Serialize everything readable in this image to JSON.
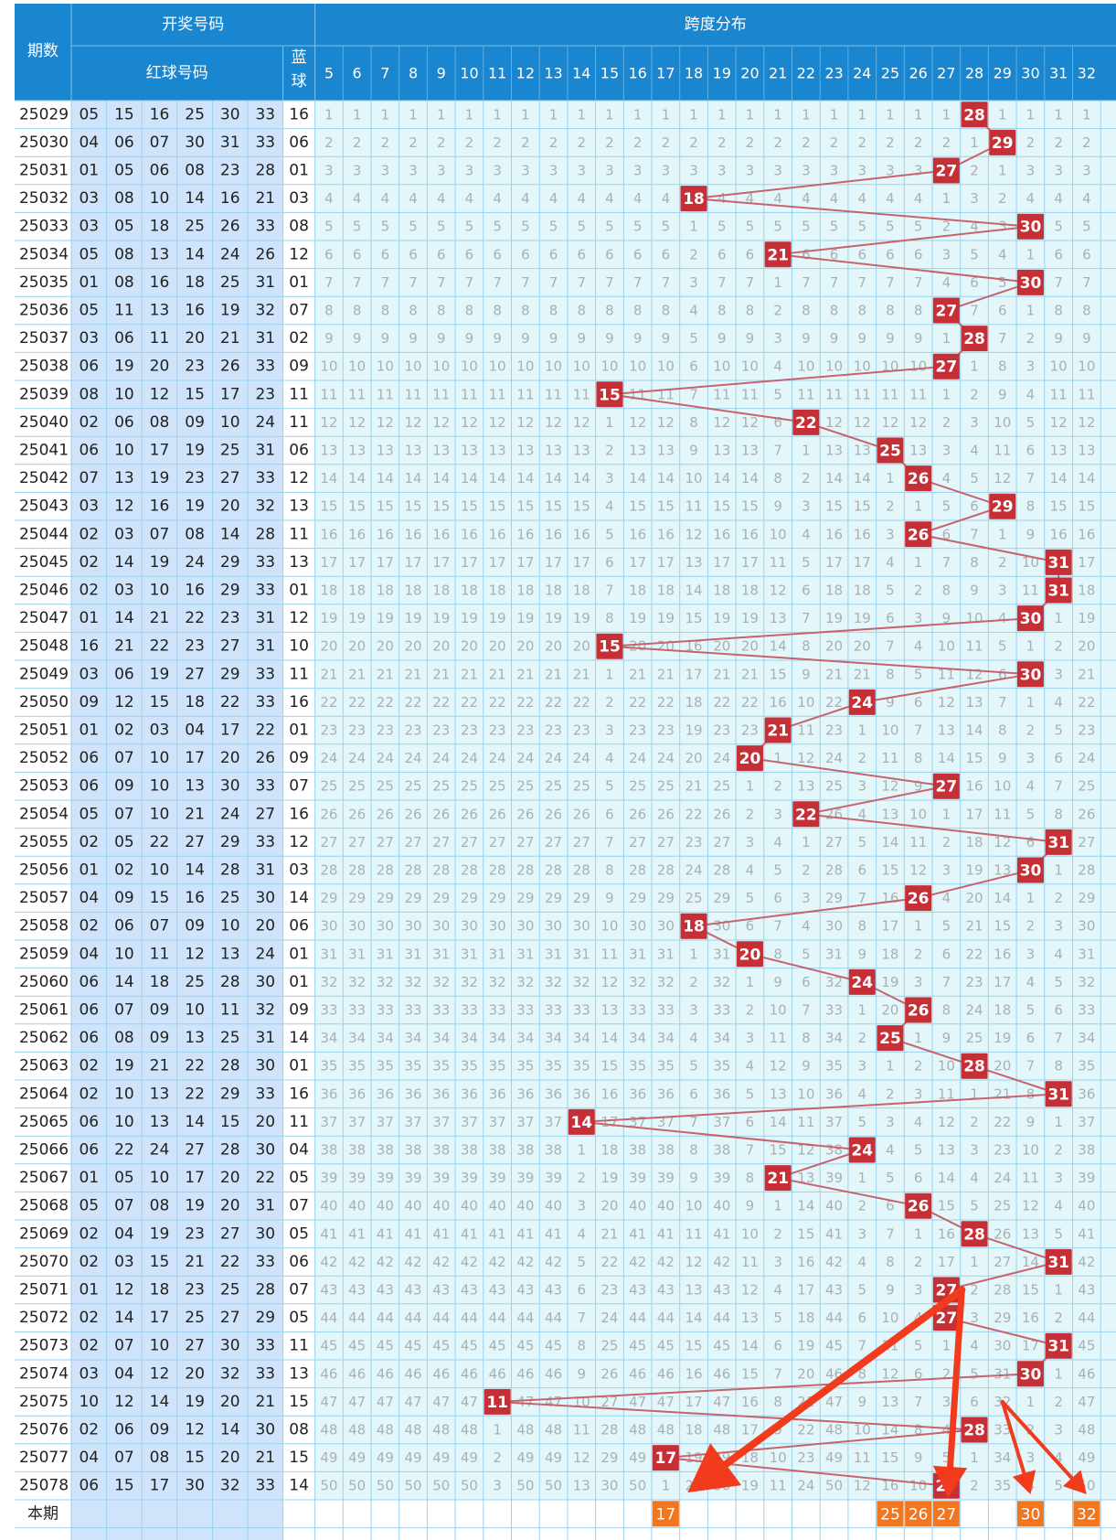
{
  "header": {
    "period_label": "期数",
    "draw_numbers_label": "开奖号码",
    "red_balls_label": "红球号码",
    "blue_ball_label": "蓝球",
    "span_label": "跨度分布",
    "current_period_label": "本期"
  },
  "span_columns": [
    5,
    6,
    7,
    8,
    9,
    10,
    11,
    12,
    13,
    14,
    15,
    16,
    17,
    18,
    19,
    20,
    21,
    22,
    23,
    24,
    25,
    26,
    27,
    28,
    29,
    30,
    31,
    32
  ],
  "rows": [
    {
      "period": "25029",
      "red": [
        "05",
        "15",
        "16",
        "25",
        "30",
        "33"
      ],
      "blue": "16",
      "span": 28
    },
    {
      "period": "25030",
      "red": [
        "04",
        "06",
        "07",
        "30",
        "31",
        "33"
      ],
      "blue": "06",
      "span": 29
    },
    {
      "period": "25031",
      "red": [
        "01",
        "05",
        "06",
        "08",
        "23",
        "28"
      ],
      "blue": "01",
      "span": 27
    },
    {
      "period": "25032",
      "red": [
        "03",
        "08",
        "10",
        "14",
        "16",
        "21"
      ],
      "blue": "03",
      "span": 18
    },
    {
      "period": "25033",
      "red": [
        "03",
        "05",
        "18",
        "25",
        "26",
        "33"
      ],
      "blue": "08",
      "span": 30
    },
    {
      "period": "25034",
      "red": [
        "05",
        "08",
        "13",
        "14",
        "24",
        "26"
      ],
      "blue": "12",
      "span": 21
    },
    {
      "period": "25035",
      "red": [
        "01",
        "08",
        "16",
        "18",
        "25",
        "31"
      ],
      "blue": "01",
      "span": 30
    },
    {
      "period": "25036",
      "red": [
        "05",
        "11",
        "13",
        "16",
        "19",
        "32"
      ],
      "blue": "07",
      "span": 27
    },
    {
      "period": "25037",
      "red": [
        "03",
        "06",
        "11",
        "20",
        "21",
        "31"
      ],
      "blue": "02",
      "span": 28
    },
    {
      "period": "25038",
      "red": [
        "06",
        "19",
        "20",
        "23",
        "26",
        "33"
      ],
      "blue": "09",
      "span": 27
    },
    {
      "period": "25039",
      "red": [
        "08",
        "10",
        "12",
        "15",
        "17",
        "23"
      ],
      "blue": "11",
      "span": 15
    },
    {
      "period": "25040",
      "red": [
        "02",
        "06",
        "08",
        "09",
        "10",
        "24"
      ],
      "blue": "11",
      "span": 22
    },
    {
      "period": "25041",
      "red": [
        "06",
        "10",
        "17",
        "19",
        "25",
        "31"
      ],
      "blue": "06",
      "span": 25
    },
    {
      "period": "25042",
      "red": [
        "07",
        "13",
        "19",
        "23",
        "27",
        "33"
      ],
      "blue": "12",
      "span": 26
    },
    {
      "period": "25043",
      "red": [
        "03",
        "12",
        "16",
        "19",
        "20",
        "32"
      ],
      "blue": "13",
      "span": 29
    },
    {
      "period": "25044",
      "red": [
        "02",
        "03",
        "07",
        "08",
        "14",
        "28"
      ],
      "blue": "11",
      "span": 26
    },
    {
      "period": "25045",
      "red": [
        "02",
        "14",
        "19",
        "24",
        "29",
        "33"
      ],
      "blue": "13",
      "span": 31
    },
    {
      "period": "25046",
      "red": [
        "02",
        "03",
        "10",
        "16",
        "29",
        "33"
      ],
      "blue": "01",
      "span": 31
    },
    {
      "period": "25047",
      "red": [
        "01",
        "14",
        "21",
        "22",
        "23",
        "31"
      ],
      "blue": "12",
      "span": 30
    },
    {
      "period": "25048",
      "red": [
        "16",
        "21",
        "22",
        "23",
        "27",
        "31"
      ],
      "blue": "10",
      "span": 15
    },
    {
      "period": "25049",
      "red": [
        "03",
        "06",
        "19",
        "27",
        "29",
        "33"
      ],
      "blue": "11",
      "span": 30
    },
    {
      "period": "25050",
      "red": [
        "09",
        "12",
        "15",
        "18",
        "22",
        "33"
      ],
      "blue": "16",
      "span": 24
    },
    {
      "period": "25051",
      "red": [
        "01",
        "02",
        "03",
        "04",
        "17",
        "22"
      ],
      "blue": "01",
      "span": 21
    },
    {
      "period": "25052",
      "red": [
        "06",
        "07",
        "10",
        "17",
        "20",
        "26"
      ],
      "blue": "09",
      "span": 20
    },
    {
      "period": "25053",
      "red": [
        "06",
        "09",
        "10",
        "13",
        "30",
        "33"
      ],
      "blue": "07",
      "span": 27
    },
    {
      "period": "25054",
      "red": [
        "05",
        "07",
        "10",
        "21",
        "24",
        "27"
      ],
      "blue": "16",
      "span": 22
    },
    {
      "period": "25055",
      "red": [
        "02",
        "05",
        "22",
        "27",
        "29",
        "33"
      ],
      "blue": "12",
      "span": 31
    },
    {
      "period": "25056",
      "red": [
        "01",
        "02",
        "10",
        "14",
        "28",
        "31"
      ],
      "blue": "03",
      "span": 30
    },
    {
      "period": "25057",
      "red": [
        "04",
        "09",
        "15",
        "16",
        "25",
        "30"
      ],
      "blue": "14",
      "span": 26
    },
    {
      "period": "25058",
      "red": [
        "02",
        "06",
        "07",
        "09",
        "10",
        "20"
      ],
      "blue": "06",
      "span": 18
    },
    {
      "period": "25059",
      "red": [
        "04",
        "10",
        "11",
        "12",
        "13",
        "24"
      ],
      "blue": "01",
      "span": 20
    },
    {
      "period": "25060",
      "red": [
        "06",
        "14",
        "18",
        "25",
        "28",
        "30"
      ],
      "blue": "01",
      "span": 24
    },
    {
      "period": "25061",
      "red": [
        "06",
        "07",
        "09",
        "10",
        "11",
        "32"
      ],
      "blue": "09",
      "span": 26
    },
    {
      "period": "25062",
      "red": [
        "06",
        "08",
        "09",
        "13",
        "25",
        "31"
      ],
      "blue": "14",
      "span": 25
    },
    {
      "period": "25063",
      "red": [
        "02",
        "19",
        "21",
        "22",
        "28",
        "30"
      ],
      "blue": "01",
      "span": 28
    },
    {
      "period": "25064",
      "red": [
        "02",
        "10",
        "13",
        "22",
        "29",
        "33"
      ],
      "blue": "16",
      "span": 31
    },
    {
      "period": "25065",
      "red": [
        "06",
        "10",
        "13",
        "14",
        "15",
        "20"
      ],
      "blue": "11",
      "span": 14
    },
    {
      "period": "25066",
      "red": [
        "06",
        "22",
        "24",
        "27",
        "28",
        "30"
      ],
      "blue": "04",
      "span": 24
    },
    {
      "period": "25067",
      "red": [
        "01",
        "05",
        "10",
        "17",
        "20",
        "22"
      ],
      "blue": "05",
      "span": 21
    },
    {
      "period": "25068",
      "red": [
        "05",
        "07",
        "08",
        "19",
        "20",
        "31"
      ],
      "blue": "07",
      "span": 26
    },
    {
      "period": "25069",
      "red": [
        "02",
        "04",
        "19",
        "23",
        "27",
        "30"
      ],
      "blue": "05",
      "span": 28
    },
    {
      "period": "25070",
      "red": [
        "02",
        "03",
        "15",
        "21",
        "22",
        "33"
      ],
      "blue": "06",
      "span": 31
    },
    {
      "period": "25071",
      "red": [
        "01",
        "12",
        "18",
        "23",
        "25",
        "28"
      ],
      "blue": "07",
      "span": 27
    },
    {
      "period": "25072",
      "red": [
        "02",
        "14",
        "17",
        "25",
        "27",
        "29"
      ],
      "blue": "05",
      "span": 27
    },
    {
      "period": "25073",
      "red": [
        "02",
        "07",
        "10",
        "27",
        "30",
        "33"
      ],
      "blue": "11",
      "span": 31
    },
    {
      "period": "25074",
      "red": [
        "03",
        "04",
        "12",
        "20",
        "32",
        "33"
      ],
      "blue": "13",
      "span": 30
    },
    {
      "period": "25075",
      "red": [
        "10",
        "12",
        "14",
        "19",
        "20",
        "21"
      ],
      "blue": "15",
      "span": 11
    },
    {
      "period": "25076",
      "red": [
        "02",
        "06",
        "09",
        "12",
        "14",
        "30"
      ],
      "blue": "08",
      "span": 28
    },
    {
      "period": "25077",
      "red": [
        "04",
        "07",
        "08",
        "15",
        "20",
        "21"
      ],
      "blue": "15",
      "span": 17
    },
    {
      "period": "25078",
      "red": [
        "06",
        "15",
        "17",
        "30",
        "32",
        "33"
      ],
      "blue": "14",
      "span": 27
    }
  ],
  "current_picks": [
    17,
    25,
    26,
    27,
    30,
    32
  ],
  "chart_data": {
    "type": "line",
    "title": "跨度分布",
    "x": [
      "25029",
      "25030",
      "25031",
      "25032",
      "25033",
      "25034",
      "25035",
      "25036",
      "25037",
      "25038",
      "25039",
      "25040",
      "25041",
      "25042",
      "25043",
      "25044",
      "25045",
      "25046",
      "25047",
      "25048",
      "25049",
      "25050",
      "25051",
      "25052",
      "25053",
      "25054",
      "25055",
      "25056",
      "25057",
      "25058",
      "25059",
      "25060",
      "25061",
      "25062",
      "25063",
      "25064",
      "25065",
      "25066",
      "25067",
      "25068",
      "25069",
      "25070",
      "25071",
      "25072",
      "25073",
      "25074",
      "25075",
      "25076",
      "25077",
      "25078"
    ],
    "series": [
      {
        "values": [
          28,
          29,
          27,
          18,
          30,
          21,
          30,
          27,
          28,
          27,
          15,
          22,
          25,
          26,
          29,
          26,
          31,
          31,
          30,
          15,
          30,
          24,
          21,
          20,
          27,
          22,
          31,
          30,
          26,
          18,
          20,
          24,
          26,
          25,
          28,
          31,
          14,
          24,
          21,
          26,
          28,
          31,
          27,
          27,
          31,
          30,
          11,
          28,
          17,
          27
        ]
      }
    ],
    "ylim": [
      5,
      32
    ],
    "grid": true
  },
  "colors": {
    "header_bg": "#1a86cf",
    "header_text": "#ffffff",
    "period_col_bg": "#ffffff",
    "red_col_bg": "#cfe4fb",
    "miss_bg": "#e3f7fa",
    "miss_text": "#a9b0b4",
    "hit_bg": "#c62f36",
    "trend_line": "#c7636c",
    "current_bg": "#f2751f",
    "arrow": "#f23a1c",
    "grid": "#9ad1ee"
  }
}
